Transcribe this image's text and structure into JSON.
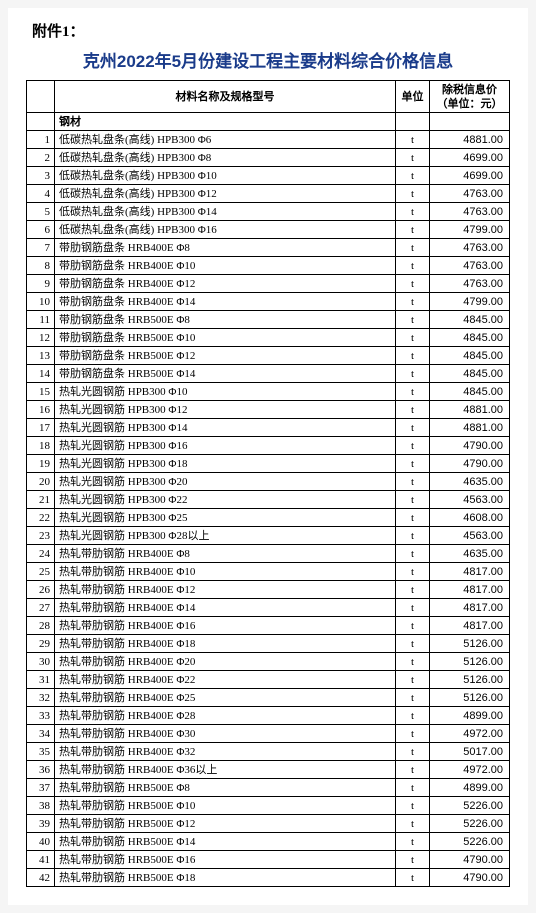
{
  "header": {
    "attach": "附件1：",
    "title": "克州2022年5月份建设工程主要材料综合价格信息"
  },
  "columns": {
    "name": "材料名称及规格型号",
    "unit": "单位",
    "price": "除税信息价\n（单位：元）"
  },
  "section_label": "钢材",
  "styling": {
    "title_color": "#1a3b8a",
    "border_color": "#000000",
    "background": "#ffffff",
    "font_body": "SimSun",
    "font_title": "SimHei",
    "font_size_body": 11,
    "font_size_title": 17
  },
  "rows": [
    {
      "idx": 1,
      "name": "低碳热轧盘条(高线) HPB300 Φ6",
      "unit": "t",
      "price": "4881.00"
    },
    {
      "idx": 2,
      "name": "低碳热轧盘条(高线) HPB300 Φ8",
      "unit": "t",
      "price": "4699.00"
    },
    {
      "idx": 3,
      "name": "低碳热轧盘条(高线) HPB300 Φ10",
      "unit": "t",
      "price": "4699.00"
    },
    {
      "idx": 4,
      "name": "低碳热轧盘条(高线) HPB300 Φ12",
      "unit": "t",
      "price": "4763.00"
    },
    {
      "idx": 5,
      "name": "低碳热轧盘条(高线) HPB300 Φ14",
      "unit": "t",
      "price": "4763.00"
    },
    {
      "idx": 6,
      "name": "低碳热轧盘条(高线) HPB300 Φ16",
      "unit": "t",
      "price": "4799.00"
    },
    {
      "idx": 7,
      "name": "带肋钢筋盘条 HRB400E Φ8",
      "unit": "t",
      "price": "4763.00"
    },
    {
      "idx": 8,
      "name": "带肋钢筋盘条 HRB400E Φ10",
      "unit": "t",
      "price": "4763.00"
    },
    {
      "idx": 9,
      "name": "带肋钢筋盘条 HRB400E Φ12",
      "unit": "t",
      "price": "4763.00"
    },
    {
      "idx": 10,
      "name": "带肋钢筋盘条 HRB400E Φ14",
      "unit": "t",
      "price": "4799.00"
    },
    {
      "idx": 11,
      "name": "带肋钢筋盘条 HRB500E Φ8",
      "unit": "t",
      "price": "4845.00"
    },
    {
      "idx": 12,
      "name": "带肋钢筋盘条 HRB500E Φ10",
      "unit": "t",
      "price": "4845.00"
    },
    {
      "idx": 13,
      "name": "带肋钢筋盘条 HRB500E Φ12",
      "unit": "t",
      "price": "4845.00"
    },
    {
      "idx": 14,
      "name": "带肋钢筋盘条 HRB500E Φ14",
      "unit": "t",
      "price": "4845.00"
    },
    {
      "idx": 15,
      "name": "热轧光圆钢筋 HPB300 Φ10",
      "unit": "t",
      "price": "4845.00"
    },
    {
      "idx": 16,
      "name": "热轧光圆钢筋 HPB300 Φ12",
      "unit": "t",
      "price": "4881.00"
    },
    {
      "idx": 17,
      "name": "热轧光圆钢筋 HPB300 Φ14",
      "unit": "t",
      "price": "4881.00"
    },
    {
      "idx": 18,
      "name": "热轧光圆钢筋 HPB300 Φ16",
      "unit": "t",
      "price": "4790.00"
    },
    {
      "idx": 19,
      "name": "热轧光圆钢筋 HPB300 Φ18",
      "unit": "t",
      "price": "4790.00"
    },
    {
      "idx": 20,
      "name": "热轧光圆钢筋 HPB300 Φ20",
      "unit": "t",
      "price": "4635.00"
    },
    {
      "idx": 21,
      "name": "热轧光圆钢筋 HPB300 Φ22",
      "unit": "t",
      "price": "4563.00"
    },
    {
      "idx": 22,
      "name": "热轧光圆钢筋 HPB300 Φ25",
      "unit": "t",
      "price": "4608.00"
    },
    {
      "idx": 23,
      "name": "热轧光圆钢筋 HPB300 Φ28以上",
      "unit": "t",
      "price": "4563.00"
    },
    {
      "idx": 24,
      "name": "热轧带肋钢筋 HRB400E Φ8",
      "unit": "t",
      "price": "4635.00"
    },
    {
      "idx": 25,
      "name": "热轧带肋钢筋 HRB400E Φ10",
      "unit": "t",
      "price": "4817.00"
    },
    {
      "idx": 26,
      "name": "热轧带肋钢筋 HRB400E Φ12",
      "unit": "t",
      "price": "4817.00"
    },
    {
      "idx": 27,
      "name": "热轧带肋钢筋 HRB400E Φ14",
      "unit": "t",
      "price": "4817.00"
    },
    {
      "idx": 28,
      "name": "热轧带肋钢筋 HRB400E Φ16",
      "unit": "t",
      "price": "4817.00"
    },
    {
      "idx": 29,
      "name": "热轧带肋钢筋 HRB400E Φ18",
      "unit": "t",
      "price": "5126.00"
    },
    {
      "idx": 30,
      "name": "热轧带肋钢筋 HRB400E Φ20",
      "unit": "t",
      "price": "5126.00"
    },
    {
      "idx": 31,
      "name": "热轧带肋钢筋 HRB400E Φ22",
      "unit": "t",
      "price": "5126.00"
    },
    {
      "idx": 32,
      "name": "热轧带肋钢筋 HRB400E Φ25",
      "unit": "t",
      "price": "5126.00"
    },
    {
      "idx": 33,
      "name": "热轧带肋钢筋 HRB400E Φ28",
      "unit": "t",
      "price": "4899.00"
    },
    {
      "idx": 34,
      "name": "热轧带肋钢筋 HRB400E Φ30",
      "unit": "t",
      "price": "4972.00"
    },
    {
      "idx": 35,
      "name": "热轧带肋钢筋 HRB400E Φ32",
      "unit": "t",
      "price": "5017.00"
    },
    {
      "idx": 36,
      "name": "热轧带肋钢筋 HRB400E Φ36以上",
      "unit": "t",
      "price": "4972.00"
    },
    {
      "idx": 37,
      "name": "热轧带肋钢筋 HRB500E Φ8",
      "unit": "t",
      "price": "4899.00"
    },
    {
      "idx": 38,
      "name": "热轧带肋钢筋 HRB500E Φ10",
      "unit": "t",
      "price": "5226.00"
    },
    {
      "idx": 39,
      "name": "热轧带肋钢筋 HRB500E Φ12",
      "unit": "t",
      "price": "5226.00"
    },
    {
      "idx": 40,
      "name": "热轧带肋钢筋 HRB500E Φ14",
      "unit": "t",
      "price": "5226.00"
    },
    {
      "idx": 41,
      "name": "热轧带肋钢筋 HRB500E Φ16",
      "unit": "t",
      "price": "4790.00"
    },
    {
      "idx": 42,
      "name": "热轧带肋钢筋 HRB500E Φ18",
      "unit": "t",
      "price": "4790.00"
    }
  ]
}
